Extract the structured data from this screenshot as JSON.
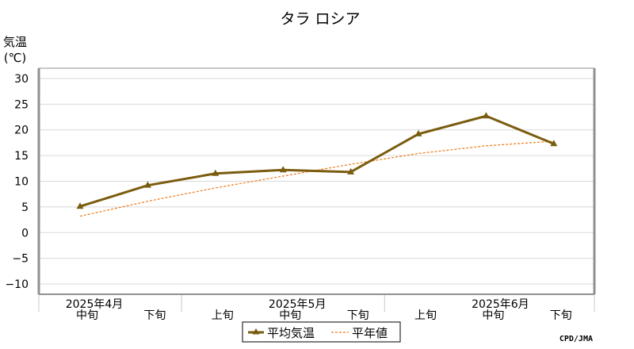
{
  "chart_data": {
    "type": "line",
    "title": "タラ ロシア",
    "ylabel": "気温",
    "yunit": "(℃)",
    "ylim": [
      -12,
      32
    ],
    "yticks": [
      -10,
      -5,
      0,
      5,
      10,
      15,
      20,
      25,
      30
    ],
    "ytick_labels": [
      "−10",
      "−5",
      "0",
      "5",
      "10",
      "15",
      "20",
      "25",
      "30"
    ],
    "grid": true,
    "legend_position": "bottom-center",
    "categories": [
      "中旬",
      "下旬",
      "上旬",
      "中旬",
      "下旬",
      "上旬",
      "中旬",
      "下旬"
    ],
    "month_labels": [
      {
        "label": "2025年4月",
        "index": 0
      },
      {
        "label": "2025年5月",
        "index": 3
      },
      {
        "label": "2025年6月",
        "index": 6
      }
    ],
    "series": [
      {
        "name": "平均気温",
        "values": [
          5.1,
          9.2,
          11.5,
          12.2,
          11.8,
          19.2,
          22.7,
          17.3
        ],
        "color": "#7a5c0f",
        "style": "solid-triangle-markers"
      },
      {
        "name": "平年値",
        "values": [
          3.2,
          6.1,
          8.7,
          11.0,
          13.3,
          15.4,
          16.9,
          17.8
        ],
        "color": "#f07a1a",
        "style": "dashed"
      }
    ],
    "credit": "CPD/JMA"
  }
}
